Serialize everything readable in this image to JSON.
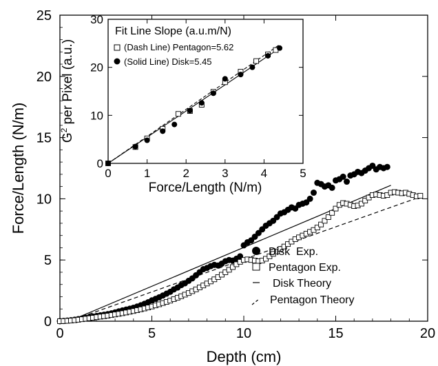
{
  "chart_data": [
    {
      "type": "scatter",
      "xlabel": "Depth (cm)",
      "ylabel": "Force/Length (N/m)",
      "xlim": [
        0,
        20
      ],
      "ylim": [
        0,
        25
      ],
      "xticks": [
        "0",
        "5",
        "10",
        "15",
        "20"
      ],
      "yticks": [
        "0",
        "5",
        "10",
        "15",
        "20",
        "25"
      ],
      "legend_position": "bottom-right",
      "series": [
        {
          "name": "Disk  Exp.",
          "marker": "filled-circle",
          "points": [
            [
              0.0,
              0.0
            ],
            [
              0.2,
              0.02
            ],
            [
              0.4,
              0.05
            ],
            [
              0.6,
              0.08
            ],
            [
              0.8,
              0.12
            ],
            [
              1.0,
              0.17
            ],
            [
              1.2,
              0.22
            ],
            [
              1.4,
              0.28
            ],
            [
              1.6,
              0.33
            ],
            [
              1.8,
              0.38
            ],
            [
              2.0,
              0.43
            ],
            [
              2.2,
              0.48
            ],
            [
              2.4,
              0.53
            ],
            [
              2.6,
              0.58
            ],
            [
              2.8,
              0.64
            ],
            [
              3.0,
              0.72
            ],
            [
              3.2,
              0.8
            ],
            [
              3.4,
              0.88
            ],
            [
              3.6,
              0.95
            ],
            [
              3.8,
              1.02
            ],
            [
              4.0,
              1.1
            ],
            [
              4.2,
              1.2
            ],
            [
              4.4,
              1.3
            ],
            [
              4.6,
              1.42
            ],
            [
              4.8,
              1.55
            ],
            [
              5.0,
              1.7
            ],
            [
              5.2,
              1.82
            ],
            [
              5.4,
              1.95
            ],
            [
              5.6,
              2.1
            ],
            [
              5.8,
              2.25
            ],
            [
              6.0,
              2.4
            ],
            [
              6.2,
              2.6
            ],
            [
              6.4,
              2.75
            ],
            [
              6.6,
              2.95
            ],
            [
              6.8,
              3.1
            ],
            [
              7.0,
              3.3
            ],
            [
              7.2,
              3.5
            ],
            [
              7.4,
              3.75
            ],
            [
              7.6,
              4.0
            ],
            [
              7.8,
              4.25
            ],
            [
              8.0,
              4.35
            ],
            [
              8.2,
              4.5
            ],
            [
              8.4,
              4.6
            ],
            [
              8.6,
              4.55
            ],
            [
              8.8,
              4.7
            ],
            [
              9.0,
              4.9
            ],
            [
              9.2,
              5.0
            ],
            [
              9.4,
              4.95
            ],
            [
              9.6,
              5.1
            ],
            [
              9.8,
              5.3
            ],
            [
              10.0,
              6.2
            ],
            [
              10.2,
              6.45
            ],
            [
              10.4,
              6.6
            ],
            [
              10.6,
              6.9
            ],
            [
              10.8,
              7.2
            ],
            [
              11.0,
              7.5
            ],
            [
              11.2,
              7.8
            ],
            [
              11.4,
              8.0
            ],
            [
              11.6,
              8.2
            ],
            [
              11.8,
              8.5
            ],
            [
              12.0,
              8.8
            ],
            [
              12.2,
              8.9
            ],
            [
              12.4,
              9.1
            ],
            [
              12.6,
              9.3
            ],
            [
              12.8,
              9.2
            ],
            [
              13.0,
              9.5
            ],
            [
              13.2,
              9.6
            ],
            [
              13.4,
              9.7
            ],
            [
              13.6,
              10.0
            ],
            [
              13.8,
              10.5
            ],
            [
              14.0,
              11.3
            ],
            [
              14.2,
              11.2
            ],
            [
              14.4,
              11.0
            ],
            [
              14.6,
              11.1
            ],
            [
              14.8,
              10.9
            ],
            [
              15.0,
              11.5
            ],
            [
              15.2,
              11.6
            ],
            [
              15.4,
              11.8
            ],
            [
              15.6,
              11.4
            ],
            [
              15.8,
              11.9
            ],
            [
              16.0,
              12.0
            ],
            [
              16.2,
              12.2
            ],
            [
              16.4,
              12.1
            ],
            [
              16.6,
              12.3
            ],
            [
              16.8,
              12.5
            ],
            [
              17.0,
              12.7
            ],
            [
              17.2,
              12.4
            ],
            [
              17.4,
              12.6
            ],
            [
              17.6,
              12.5
            ],
            [
              17.8,
              12.6
            ]
          ]
        },
        {
          "name": "Pentagon Exp.",
          "marker": "open-square",
          "points": [
            [
              0.0,
              0.0
            ],
            [
              0.2,
              0.01
            ],
            [
              0.4,
              0.03
            ],
            [
              0.6,
              0.05
            ],
            [
              0.8,
              0.08
            ],
            [
              1.0,
              0.12
            ],
            [
              1.2,
              0.16
            ],
            [
              1.4,
              0.2
            ],
            [
              1.6,
              0.24
            ],
            [
              1.8,
              0.28
            ],
            [
              2.0,
              0.33
            ],
            [
              2.2,
              0.37
            ],
            [
              2.4,
              0.41
            ],
            [
              2.6,
              0.45
            ],
            [
              2.8,
              0.5
            ],
            [
              3.0,
              0.55
            ],
            [
              3.2,
              0.6
            ],
            [
              3.4,
              0.65
            ],
            [
              3.6,
              0.71
            ],
            [
              3.8,
              0.77
            ],
            [
              4.0,
              0.83
            ],
            [
              4.2,
              0.9
            ],
            [
              4.4,
              0.97
            ],
            [
              4.6,
              1.04
            ],
            [
              4.8,
              1.12
            ],
            [
              5.0,
              1.2
            ],
            [
              5.2,
              1.29
            ],
            [
              5.4,
              1.38
            ],
            [
              5.6,
              1.48
            ],
            [
              5.8,
              1.58
            ],
            [
              6.0,
              1.68
            ],
            [
              6.2,
              1.8
            ],
            [
              6.4,
              1.92
            ],
            [
              6.6,
              2.04
            ],
            [
              6.8,
              2.17
            ],
            [
              7.0,
              2.3
            ],
            [
              7.2,
              2.45
            ],
            [
              7.4,
              2.6
            ],
            [
              7.6,
              2.76
            ],
            [
              7.8,
              2.92
            ],
            [
              8.0,
              3.08
            ],
            [
              8.2,
              3.25
            ],
            [
              8.4,
              3.42
            ],
            [
              8.6,
              3.6
            ],
            [
              8.8,
              3.8
            ],
            [
              9.0,
              4.0
            ],
            [
              9.2,
              4.2
            ],
            [
              9.4,
              4.42
            ],
            [
              9.6,
              4.65
            ],
            [
              9.8,
              4.85
            ],
            [
              10.0,
              5.0
            ],
            [
              10.2,
              5.05
            ],
            [
              10.4,
              5.0
            ],
            [
              10.6,
              4.95
            ],
            [
              10.8,
              4.9
            ],
            [
              11.0,
              4.95
            ],
            [
              11.2,
              5.1
            ],
            [
              11.4,
              5.3
            ],
            [
              11.6,
              5.5
            ],
            [
              11.8,
              5.7
            ],
            [
              12.0,
              5.9
            ],
            [
              12.2,
              6.1
            ],
            [
              12.4,
              6.3
            ],
            [
              12.6,
              6.5
            ],
            [
              12.8,
              6.7
            ],
            [
              13.0,
              6.85
            ],
            [
              13.2,
              7.0
            ],
            [
              13.4,
              7.15
            ],
            [
              13.6,
              7.3
            ],
            [
              13.8,
              7.45
            ],
            [
              14.0,
              7.65
            ],
            [
              14.2,
              7.9
            ],
            [
              14.4,
              8.2
            ],
            [
              14.6,
              8.5
            ],
            [
              14.8,
              8.85
            ],
            [
              15.0,
              9.2
            ],
            [
              15.2,
              9.5
            ],
            [
              15.4,
              9.65
            ],
            [
              15.6,
              9.6
            ],
            [
              15.8,
              9.5
            ],
            [
              16.0,
              9.4
            ],
            [
              16.2,
              9.45
            ],
            [
              16.4,
              9.6
            ],
            [
              16.6,
              9.85
            ],
            [
              16.8,
              10.1
            ],
            [
              17.0,
              10.3
            ],
            [
              17.2,
              10.35
            ],
            [
              17.4,
              10.3
            ],
            [
              17.6,
              10.25
            ],
            [
              17.8,
              10.3
            ],
            [
              18.0,
              10.5
            ],
            [
              18.2,
              10.55
            ],
            [
              18.4,
              10.5
            ],
            [
              18.6,
              10.45
            ],
            [
              18.8,
              10.5
            ],
            [
              19.0,
              10.4
            ],
            [
              19.2,
              10.3
            ],
            [
              19.4,
              10.2
            ],
            [
              19.6,
              10.25
            ]
          ]
        },
        {
          "name": "Disk Theory",
          "style": "solid-line",
          "points": [
            [
              0.5,
              0.0
            ],
            [
              18.0,
              11.1
            ]
          ]
        },
        {
          "name": "Pentagon Theory",
          "style": "dashed-line",
          "points": [
            [
              0.5,
              0.0
            ],
            [
              19.5,
              10.1
            ]
          ]
        }
      ]
    },
    {
      "type": "scatter",
      "title": "Fit Line Slope (a.u.m/N)",
      "xlabel": "Force/Length (N/m)",
      "ylabel_base": "G",
      "ylabel_sup": "2",
      "ylabel_rest": " per Pixel (a.u.)",
      "xlim": [
        0,
        5
      ],
      "ylim": [
        0,
        30
      ],
      "xticks": [
        "0",
        "1",
        "2",
        "3",
        "4",
        "5"
      ],
      "yticks": [
        "0",
        "10",
        "20",
        "30"
      ],
      "legend_position": "top-left",
      "series": [
        {
          "name": "(Dash Line) Pentagon=5.62",
          "marker": "open-square",
          "fit_slope": 5.62,
          "points": [
            [
              0.0,
              0.0
            ],
            [
              0.7,
              3.4
            ],
            [
              1.0,
              5.2
            ],
            [
              1.4,
              7.2
            ],
            [
              1.8,
              10.3
            ],
            [
              2.1,
              10.9
            ],
            [
              2.4,
              12.2
            ],
            [
              2.7,
              14.9
            ],
            [
              3.0,
              16.9
            ],
            [
              3.4,
              19.1
            ],
            [
              3.8,
              21.3
            ],
            [
              4.1,
              22.7
            ],
            [
              4.3,
              23.6
            ]
          ]
        },
        {
          "name": "(Solid Line) Disk=5.45",
          "marker": "filled-circle",
          "fit_slope": 5.45,
          "points": [
            [
              0.0,
              0.0
            ],
            [
              0.7,
              3.5
            ],
            [
              1.0,
              4.8
            ],
            [
              1.4,
              6.7
            ],
            [
              1.7,
              8.1
            ],
            [
              2.1,
              11.0
            ],
            [
              2.4,
              12.6
            ],
            [
              2.7,
              14.6
            ],
            [
              3.0,
              17.6
            ],
            [
              3.4,
              18.5
            ],
            [
              3.7,
              20.0
            ],
            [
              4.1,
              22.4
            ],
            [
              4.4,
              24.0
            ]
          ]
        }
      ]
    }
  ],
  "colors": {
    "ink": "#000000",
    "background": "#ffffff"
  }
}
